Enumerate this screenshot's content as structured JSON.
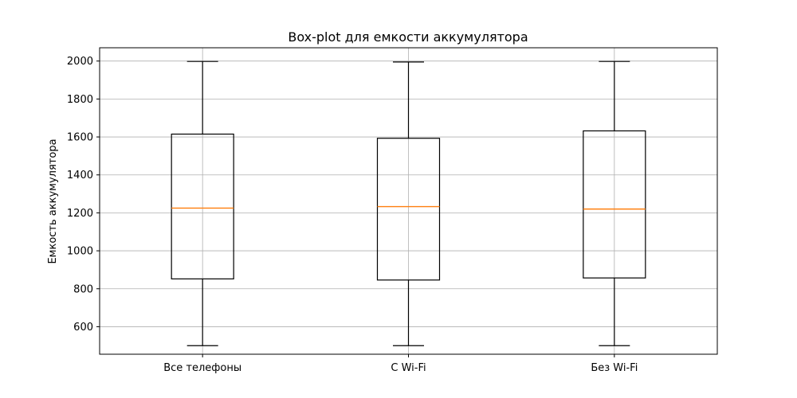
{
  "chart_data": {
    "type": "box",
    "title": "Box-plot для емкости аккумулятора",
    "xlabel": "",
    "ylabel": "Емкость аккумулятора",
    "ylim": [
      455,
      2070
    ],
    "yticks": [
      600,
      800,
      1000,
      1200,
      1400,
      1600,
      1800,
      2000
    ],
    "grid": true,
    "categories": [
      "Все телефоны",
      "С Wi-Fi",
      "Без Wi-Fi"
    ],
    "boxes": [
      {
        "name": "Все телефоны",
        "whisker_low": 500,
        "q1": 852,
        "median": 1225,
        "q3": 1615,
        "whisker_high": 1998
      },
      {
        "name": "С Wi-Fi",
        "whisker_low": 500,
        "q1": 846,
        "median": 1233,
        "q3": 1593,
        "whisker_high": 1995
      },
      {
        "name": "Без Wi-Fi",
        "whisker_low": 500,
        "q1": 857,
        "median": 1220,
        "q3": 1632,
        "whisker_high": 1998
      }
    ],
    "colors": {
      "box": "#000000",
      "median": "#ff7f0e",
      "grid": "#b0b0b0"
    }
  }
}
